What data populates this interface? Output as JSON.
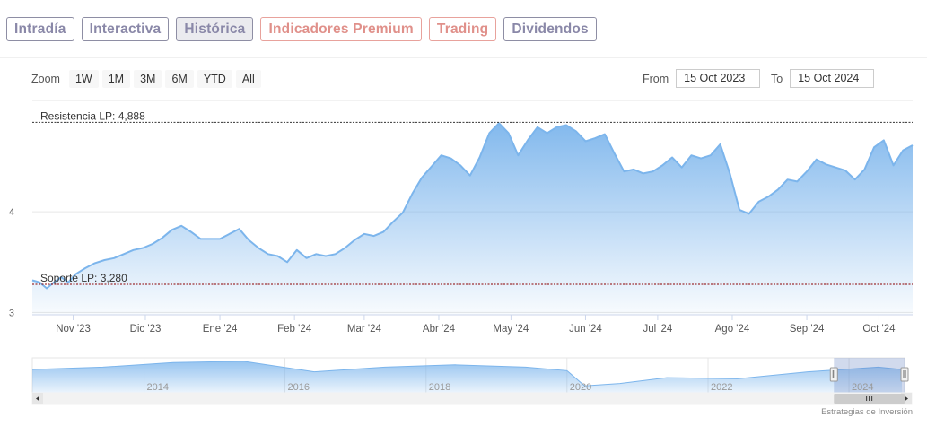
{
  "tabs": [
    {
      "label": "Intradía"
    },
    {
      "label": "Interactiva"
    },
    {
      "label": "Histórica"
    },
    {
      "label": "Indicadores Premium"
    },
    {
      "label": "Trading"
    },
    {
      "label": "Dividendos"
    }
  ],
  "zoom": {
    "label": "Zoom",
    "buttons": [
      "1W",
      "1M",
      "3M",
      "6M",
      "YTD",
      "All"
    ]
  },
  "range": {
    "from_label": "From",
    "from_value": "15 Oct 2023",
    "to_label": "To",
    "to_value": "15 Oct 2024"
  },
  "credits": "Estrategias de Inversión",
  "colors": {
    "line": "#7cb5ec",
    "resistance": "#333333",
    "support": "#8b0000"
  },
  "chart_data": {
    "type": "area",
    "title": "",
    "xlabel": "",
    "ylabel": "",
    "ylim": [
      2.977,
      5.105
    ],
    "y_ticks": [
      3,
      4
    ],
    "x_ticks": [
      "Nov '23",
      "Dic '23",
      "Ene '24",
      "Feb '24",
      "Mar '24",
      "Abr '24",
      "May '24",
      "Jun '24",
      "Jul '24",
      "Ago '24",
      "Sep '24",
      "Oct '24"
    ],
    "x_tick_dates": [
      "2023-11-01",
      "2023-12-01",
      "2024-01-01",
      "2024-02-01",
      "2024-03-01",
      "2024-04-01",
      "2024-05-01",
      "2024-06-01",
      "2024-07-01",
      "2024-08-01",
      "2024-09-01",
      "2024-10-01"
    ],
    "x_range": [
      "2023-10-15",
      "2024-10-15"
    ],
    "grid": "horizontal",
    "series": [
      {
        "x": [
          "2023-10-15",
          "2023-10-18",
          "2023-10-21",
          "2023-10-24",
          "2023-10-27",
          "2023-10-30",
          "2023-11-02",
          "2023-11-06",
          "2023-11-10",
          "2023-11-14",
          "2023-11-18",
          "2023-11-22",
          "2023-11-26",
          "2023-11-30",
          "2023-12-04",
          "2023-12-08",
          "2023-12-12",
          "2023-12-16",
          "2023-12-20",
          "2023-12-24",
          "2023-12-28",
          "2024-01-01",
          "2024-01-05",
          "2024-01-09",
          "2024-01-13",
          "2024-01-17",
          "2024-01-21",
          "2024-01-25",
          "2024-01-29",
          "2024-02-02",
          "2024-02-06",
          "2024-02-10",
          "2024-02-14",
          "2024-02-18",
          "2024-02-22",
          "2024-02-26",
          "2024-03-01",
          "2024-03-05",
          "2024-03-09",
          "2024-03-13",
          "2024-03-17",
          "2024-03-21",
          "2024-03-25",
          "2024-03-29",
          "2024-04-02",
          "2024-04-06",
          "2024-04-10",
          "2024-04-14",
          "2024-04-18",
          "2024-04-22",
          "2024-04-26",
          "2024-04-30",
          "2024-05-04",
          "2024-05-08",
          "2024-05-12",
          "2024-05-16",
          "2024-05-20",
          "2024-05-24",
          "2024-05-28",
          "2024-06-01",
          "2024-06-05",
          "2024-06-09",
          "2024-06-13",
          "2024-06-17",
          "2024-06-21",
          "2024-06-25",
          "2024-06-29",
          "2024-07-03",
          "2024-07-07",
          "2024-07-11",
          "2024-07-15",
          "2024-07-19",
          "2024-07-23",
          "2024-07-27",
          "2024-07-31",
          "2024-08-04",
          "2024-08-08",
          "2024-08-12",
          "2024-08-16",
          "2024-08-20",
          "2024-08-24",
          "2024-08-28",
          "2024-09-01",
          "2024-09-05",
          "2024-09-09",
          "2024-09-13",
          "2024-09-17",
          "2024-09-21",
          "2024-09-25",
          "2024-09-29",
          "2024-10-03",
          "2024-10-07",
          "2024-10-11",
          "2024-10-15"
        ],
        "values": [
          3.32,
          3.3,
          3.24,
          3.3,
          3.35,
          3.3,
          3.38,
          3.44,
          3.49,
          3.52,
          3.54,
          3.58,
          3.62,
          3.64,
          3.68,
          3.74,
          3.82,
          3.86,
          3.8,
          3.73,
          3.73,
          3.73,
          3.78,
          3.83,
          3.72,
          3.64,
          3.58,
          3.56,
          3.5,
          3.62,
          3.54,
          3.58,
          3.56,
          3.58,
          3.64,
          3.72,
          3.78,
          3.76,
          3.8,
          3.9,
          3.99,
          4.18,
          4.34,
          4.45,
          4.56,
          4.53,
          4.46,
          4.36,
          4.54,
          4.78,
          4.88,
          4.78,
          4.56,
          4.71,
          4.84,
          4.78,
          4.84,
          4.86,
          4.8,
          4.7,
          4.73,
          4.77,
          4.58,
          4.4,
          4.42,
          4.38,
          4.4,
          4.46,
          4.54,
          4.44,
          4.56,
          4.53,
          4.56,
          4.67,
          4.38,
          4.02,
          3.98,
          4.1,
          4.15,
          4.22,
          4.32,
          4.3,
          4.4,
          4.52,
          4.47,
          4.44,
          4.41,
          4.32,
          4.42,
          4.64,
          4.71,
          4.46,
          4.61,
          4.66
        ]
      }
    ],
    "lines": [
      {
        "label": "Resistencia LP: 4,888",
        "value": 4.888
      },
      {
        "label": "Soporte LP: 3,280",
        "value": 3.28
      }
    ],
    "navigator": {
      "x_ticks": [
        "2014",
        "2016",
        "2018",
        "2020",
        "2022",
        "2024"
      ],
      "x_range": [
        "2012-06-01",
        "2024-10-15"
      ],
      "selected": [
        "2023-10-15",
        "2024-10-15"
      ],
      "x": [
        "2012-06",
        "2013-06",
        "2014-06",
        "2015-06",
        "2016-06",
        "2017-06",
        "2018-06",
        "2019-06",
        "2020-01",
        "2020-04",
        "2020-10",
        "2021-06",
        "2022-06",
        "2023-06",
        "2024-06",
        "2024-10"
      ],
      "values": [
        4.6,
        4.8,
        5.2,
        5.3,
        4.4,
        4.8,
        5.0,
        4.8,
        4.5,
        3.2,
        3.4,
        3.9,
        3.8,
        4.4,
        4.8,
        4.6
      ]
    }
  }
}
